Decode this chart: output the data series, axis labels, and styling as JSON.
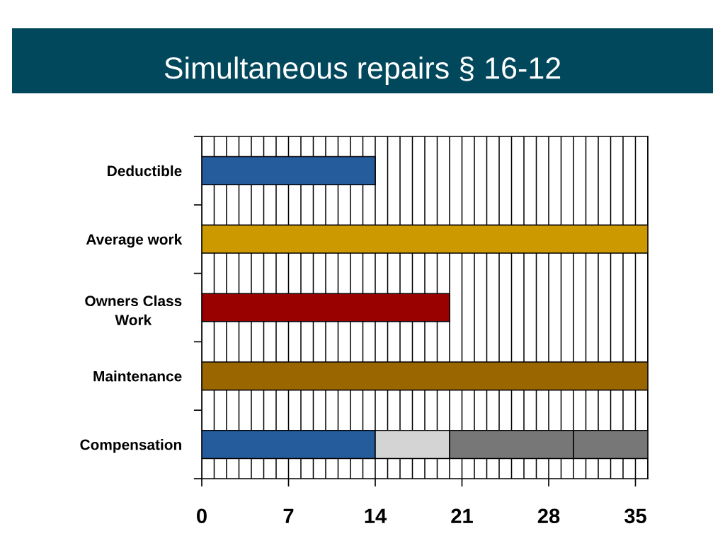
{
  "chart_data": {
    "type": "bar",
    "title": "Simultaneous repairs § 16-12",
    "orientation": "horizontal",
    "stacked": true,
    "categories": [
      "Deductible",
      "Average work",
      "Owners Class\nWork",
      "Maintenance",
      "Compensation"
    ],
    "series": [
      {
        "colors": [
          "#245c9c",
          "#cc9900",
          "#990000",
          "#996600",
          "#245c9c"
        ],
        "values": [
          14,
          36,
          20,
          36,
          14
        ]
      },
      {
        "color": "#d4d4d4",
        "values": [
          null,
          null,
          null,
          null,
          6
        ]
      },
      {
        "color": "#777777",
        "values": [
          null,
          null,
          null,
          null,
          10
        ]
      },
      {
        "color": "#777777",
        "values": [
          null,
          null,
          null,
          null,
          6
        ]
      }
    ],
    "xlim": [
      0,
      36
    ],
    "xticks": [
      0,
      {
        "value": 1,
        "label": null
      },
      {
        "value": 2,
        "label": null
      },
      {
        "value": 3,
        "label": null
      },
      {
        "value": 4,
        "label": null
      },
      {
        "value": 5,
        "label": null
      },
      {
        "value": 6,
        "label": null
      },
      7,
      {
        "value": 8,
        "label": null
      },
      {
        "value": 9,
        "label": null
      },
      {
        "value": 10,
        "label": null
      },
      {
        "value": 11,
        "label": null
      },
      {
        "value": 12,
        "label": null
      },
      {
        "value": 13,
        "label": null
      },
      14,
      {
        "value": 15,
        "label": null
      },
      {
        "value": 16,
        "label": null
      },
      {
        "value": 17,
        "label": null
      },
      {
        "value": 18,
        "label": null
      },
      {
        "value": 19,
        "label": null
      },
      {
        "value": 20,
        "label": null
      },
      21,
      {
        "value": 22,
        "label": null
      },
      {
        "value": 23,
        "label": null
      },
      {
        "value": 24,
        "label": null
      },
      {
        "value": 25,
        "label": null
      },
      {
        "value": 26,
        "label": null
      },
      {
        "value": 27,
        "label": null
      },
      28,
      {
        "value": 29,
        "label": null
      },
      {
        "value": 30,
        "label": null
      },
      {
        "value": 31,
        "label": null
      },
      {
        "value": 32,
        "label": null
      },
      {
        "value": 33,
        "label": null
      },
      {
        "value": 34,
        "label": null
      },
      35,
      {
        "value": 36,
        "label": null
      }
    ],
    "grid": "x"
  }
}
